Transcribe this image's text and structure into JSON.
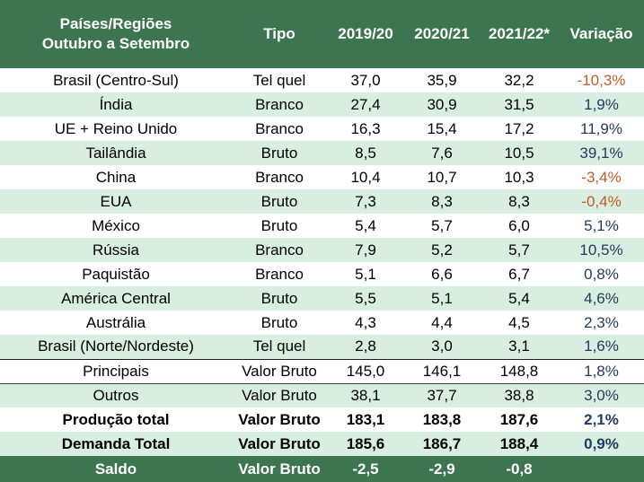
{
  "headers": {
    "region_line1": "Países/Regiões",
    "region_line2": "Outubro a Setembro",
    "type": "Tipo",
    "y1": "2019/20",
    "y2": "2020/21",
    "y3": "2021/22*",
    "change": "Variação"
  },
  "rows": [
    {
      "region": "Brasil (Centro-Sul)",
      "type": "Tel quel",
      "y1": "37,0",
      "y2": "35,9",
      "y3": "32,2",
      "change": "-10,3%"
    },
    {
      "region": "Índia",
      "type": "Branco",
      "y1": "27,4",
      "y2": "30,9",
      "y3": "31,5",
      "change": "1,9%"
    },
    {
      "region": "UE + Reino Unido",
      "type": "Branco",
      "y1": "16,3",
      "y2": "15,4",
      "y3": "17,2",
      "change": "11,9%"
    },
    {
      "region": "Tailândia",
      "type": "Bruto",
      "y1": "8,5",
      "y2": "7,6",
      "y3": "10,5",
      "change": "39,1%"
    },
    {
      "region": "China",
      "type": "Branco",
      "y1": "10,4",
      "y2": "10,7",
      "y3": "10,3",
      "change": "-3,4%"
    },
    {
      "region": "EUA",
      "type": "Bruto",
      "y1": "7,3",
      "y2": "8,3",
      "y3": "8,3",
      "change": "-0,4%"
    },
    {
      "region": "México",
      "type": "Bruto",
      "y1": "5,4",
      "y2": "5,7",
      "y3": "6,0",
      "change": "5,1%"
    },
    {
      "region": "Rússia",
      "type": "Branco",
      "y1": "7,9",
      "y2": "5,2",
      "y3": "5,7",
      "change": "10,5%"
    },
    {
      "region": "Paquistão",
      "type": "Branco",
      "y1": "5,1",
      "y2": "6,6",
      "y3": "6,7",
      "change": "0,8%"
    },
    {
      "region": "América Central",
      "type": "Bruto",
      "y1": "5,5",
      "y2": "5,1",
      "y3": "5,4",
      "change": "4,6%"
    },
    {
      "region": "Austrália",
      "type": "Bruto",
      "y1": "4,3",
      "y2": "4,4",
      "y3": "4,5",
      "change": "2,3%"
    },
    {
      "region": "Brasil (Norte/Nordeste)",
      "type": "Tel quel",
      "y1": "2,8",
      "y2": "3,0",
      "y3": "3,1",
      "change": "1,6%"
    }
  ],
  "summary": {
    "principais": {
      "region": "Principais",
      "type": "Valor Bruto",
      "y1": "145,0",
      "y2": "146,1",
      "y3": "148,8",
      "change": "1,8%"
    },
    "outros": {
      "region": "Outros",
      "type": "Valor Bruto",
      "y1": "38,1",
      "y2": "37,7",
      "y3": "38,8",
      "change": "3,0%"
    },
    "producao": {
      "region": "Produção total",
      "type": "Valor Bruto",
      "y1": "183,1",
      "y2": "183,8",
      "y3": "187,6",
      "change": "2,1%"
    },
    "demanda": {
      "region": "Demanda Total",
      "type": "Valor Bruto",
      "y1": "185,6",
      "y2": "186,7",
      "y3": "188,4",
      "change": "0,9%"
    },
    "saldo": {
      "region": "Saldo",
      "type": "Valor Bruto",
      "y1": "-2,5",
      "y2": "-2,9",
      "y3": "-0,8",
      "change": ""
    }
  },
  "colors": {
    "header_bg": "#3c7550",
    "stripe_bg": "#d7eee0",
    "negative_text": "#c65a28",
    "positive_text": "#1f3b5c"
  }
}
